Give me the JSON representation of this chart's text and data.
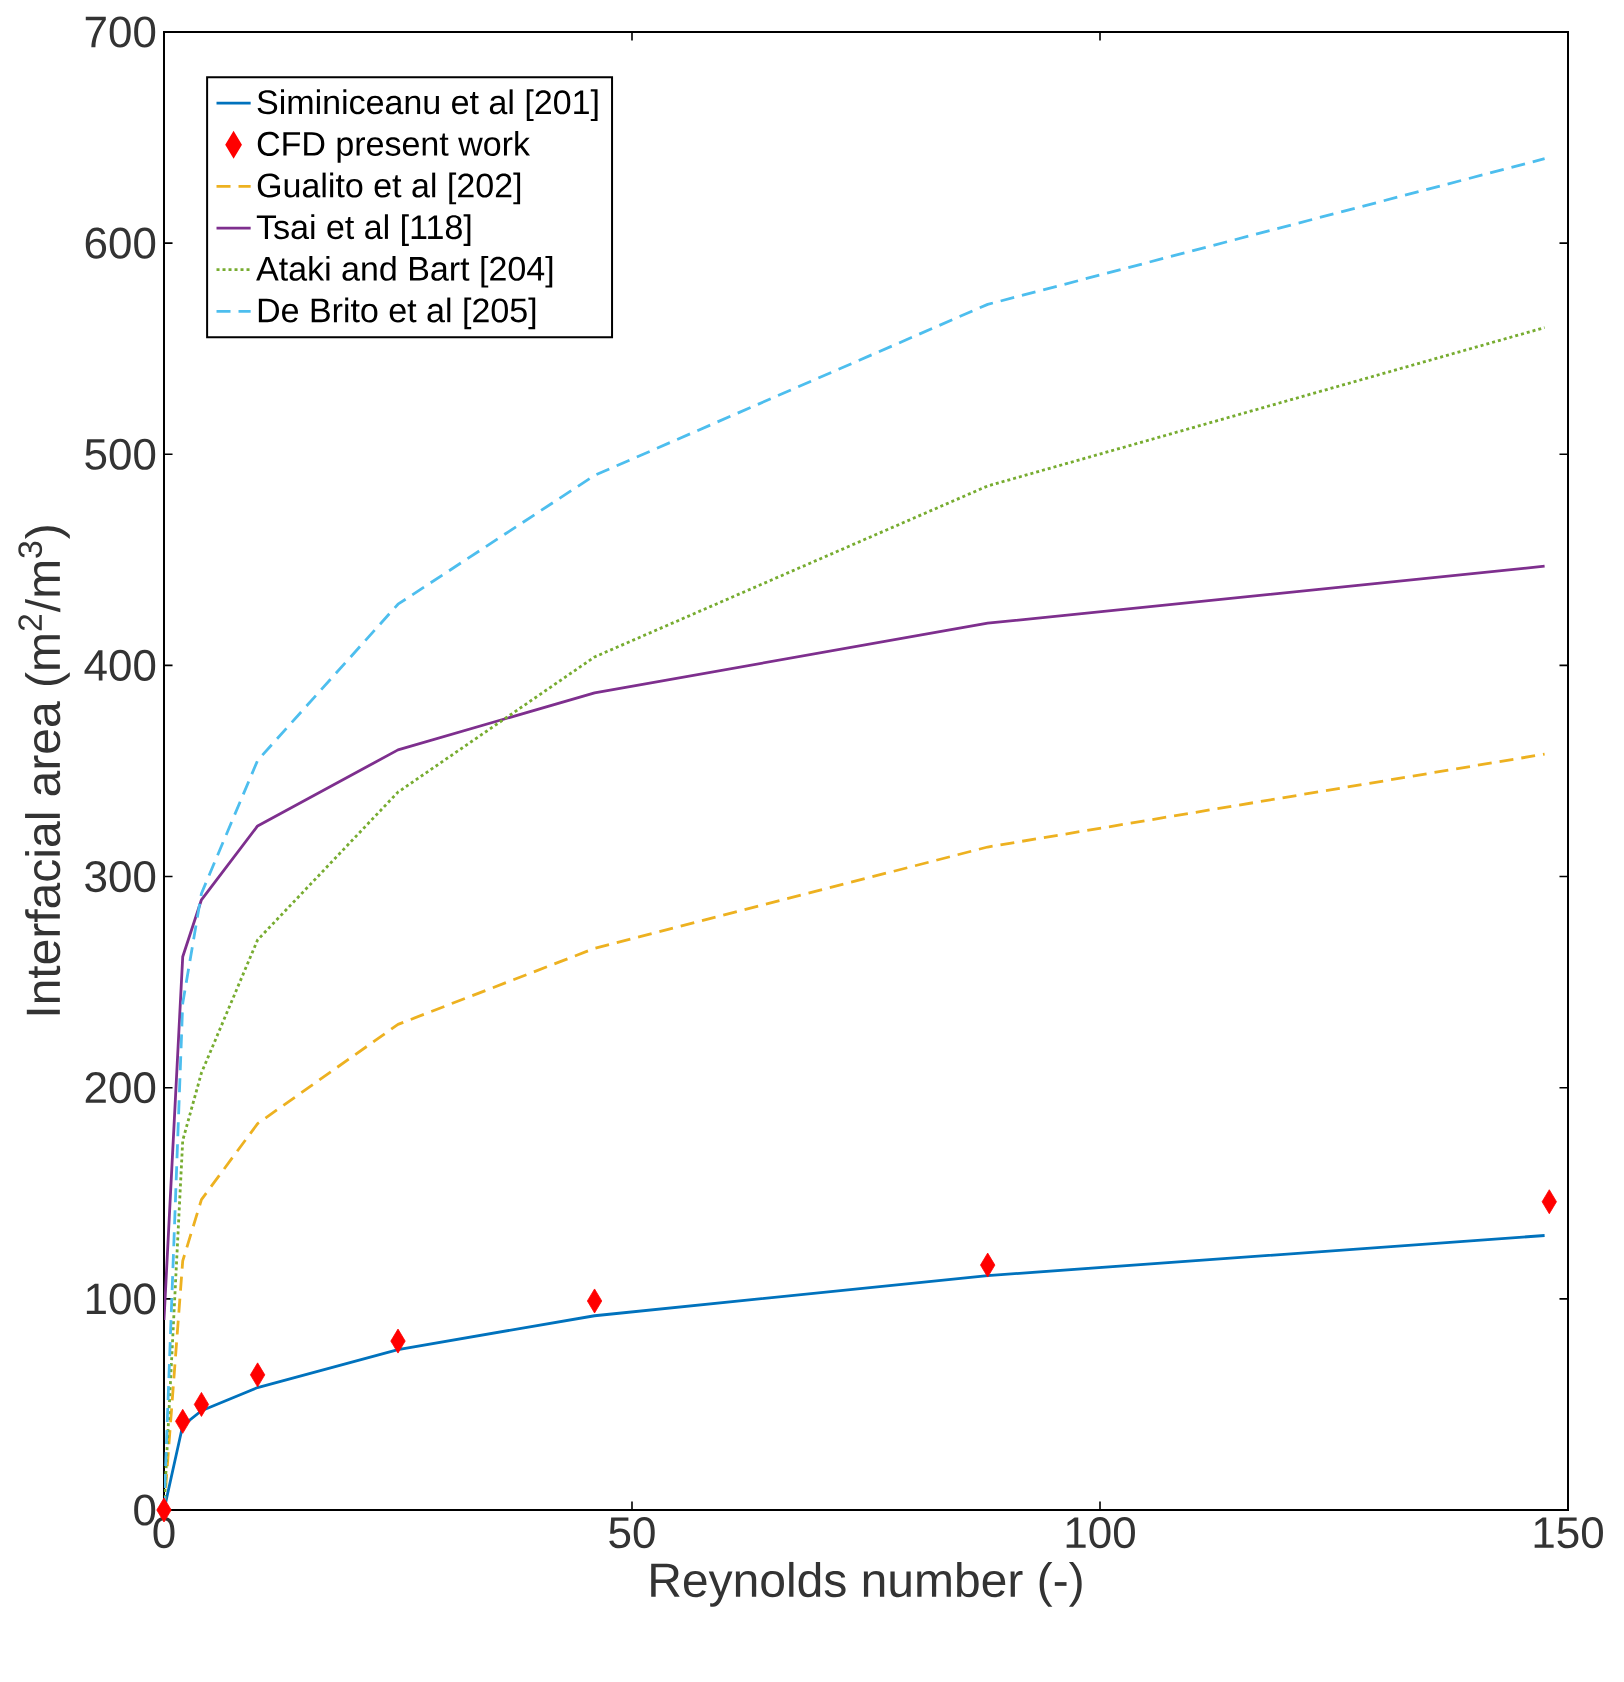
{
  "chart_data": {
    "type": "line",
    "xlabel": "Reynolds number (-)",
    "ylabel": "Interfacial area (m$^{2}$/m$^{3}$)",
    "xlim": [
      0,
      150
    ],
    "ylim": [
      0,
      700
    ],
    "xticks": [
      0,
      50,
      100,
      150
    ],
    "yticks": [
      0,
      100,
      200,
      300,
      400,
      500,
      600,
      700
    ],
    "legend": "top left",
    "grid": false,
    "series": [
      {
        "name": "Siminiceanu et al [201]",
        "color": "#0072bd",
        "line_style": "solid",
        "marker": "none",
        "x": [
          0,
          2,
          4,
          10,
          25,
          46,
          88,
          147.5
        ],
        "values": [
          0,
          40,
          47,
          58,
          76,
          92,
          111,
          130
        ]
      },
      {
        "name": "CFD present work",
        "type": "scatter",
        "color": "#ff0000",
        "marker": "diamond",
        "x": [
          0,
          2,
          4,
          10,
          25,
          46,
          88,
          148
        ],
        "values": [
          0,
          42,
          50,
          64,
          80,
          99,
          116,
          146
        ]
      },
      {
        "name": "Gualito et al [202]",
        "color": "#edb120",
        "line_style": "dashed",
        "marker": "none",
        "x": [
          0,
          2,
          4,
          10,
          25,
          46,
          88,
          147.5
        ],
        "values": [
          0,
          118,
          147,
          183,
          230,
          266,
          314,
          358
        ]
      },
      {
        "name": "Tsai et al [118]",
        "color": "#7e2f8e",
        "line_style": "solid",
        "marker": "none",
        "x": [
          0,
          2,
          4,
          10,
          25,
          46,
          88,
          147.5
        ],
        "values": [
          90,
          262,
          289,
          324,
          360,
          387,
          420,
          447
        ]
      },
      {
        "name": "Ataki and Bart [204]",
        "color": "#77ac30",
        "line_style": "dotted",
        "marker": "none",
        "x": [
          0,
          2,
          4,
          10,
          25,
          46,
          88,
          147.5
        ],
        "values": [
          0,
          175,
          207,
          270,
          340,
          404,
          485,
          560
        ]
      },
      {
        "name": "De Brito et al [205]",
        "color": "#4dbeee",
        "line_style": "dashed",
        "marker": "none",
        "x": [
          0,
          2,
          4,
          10,
          25,
          46,
          88,
          147.5
        ],
        "values": [
          0,
          240,
          292,
          355,
          429,
          490,
          571,
          640
        ]
      }
    ]
  }
}
